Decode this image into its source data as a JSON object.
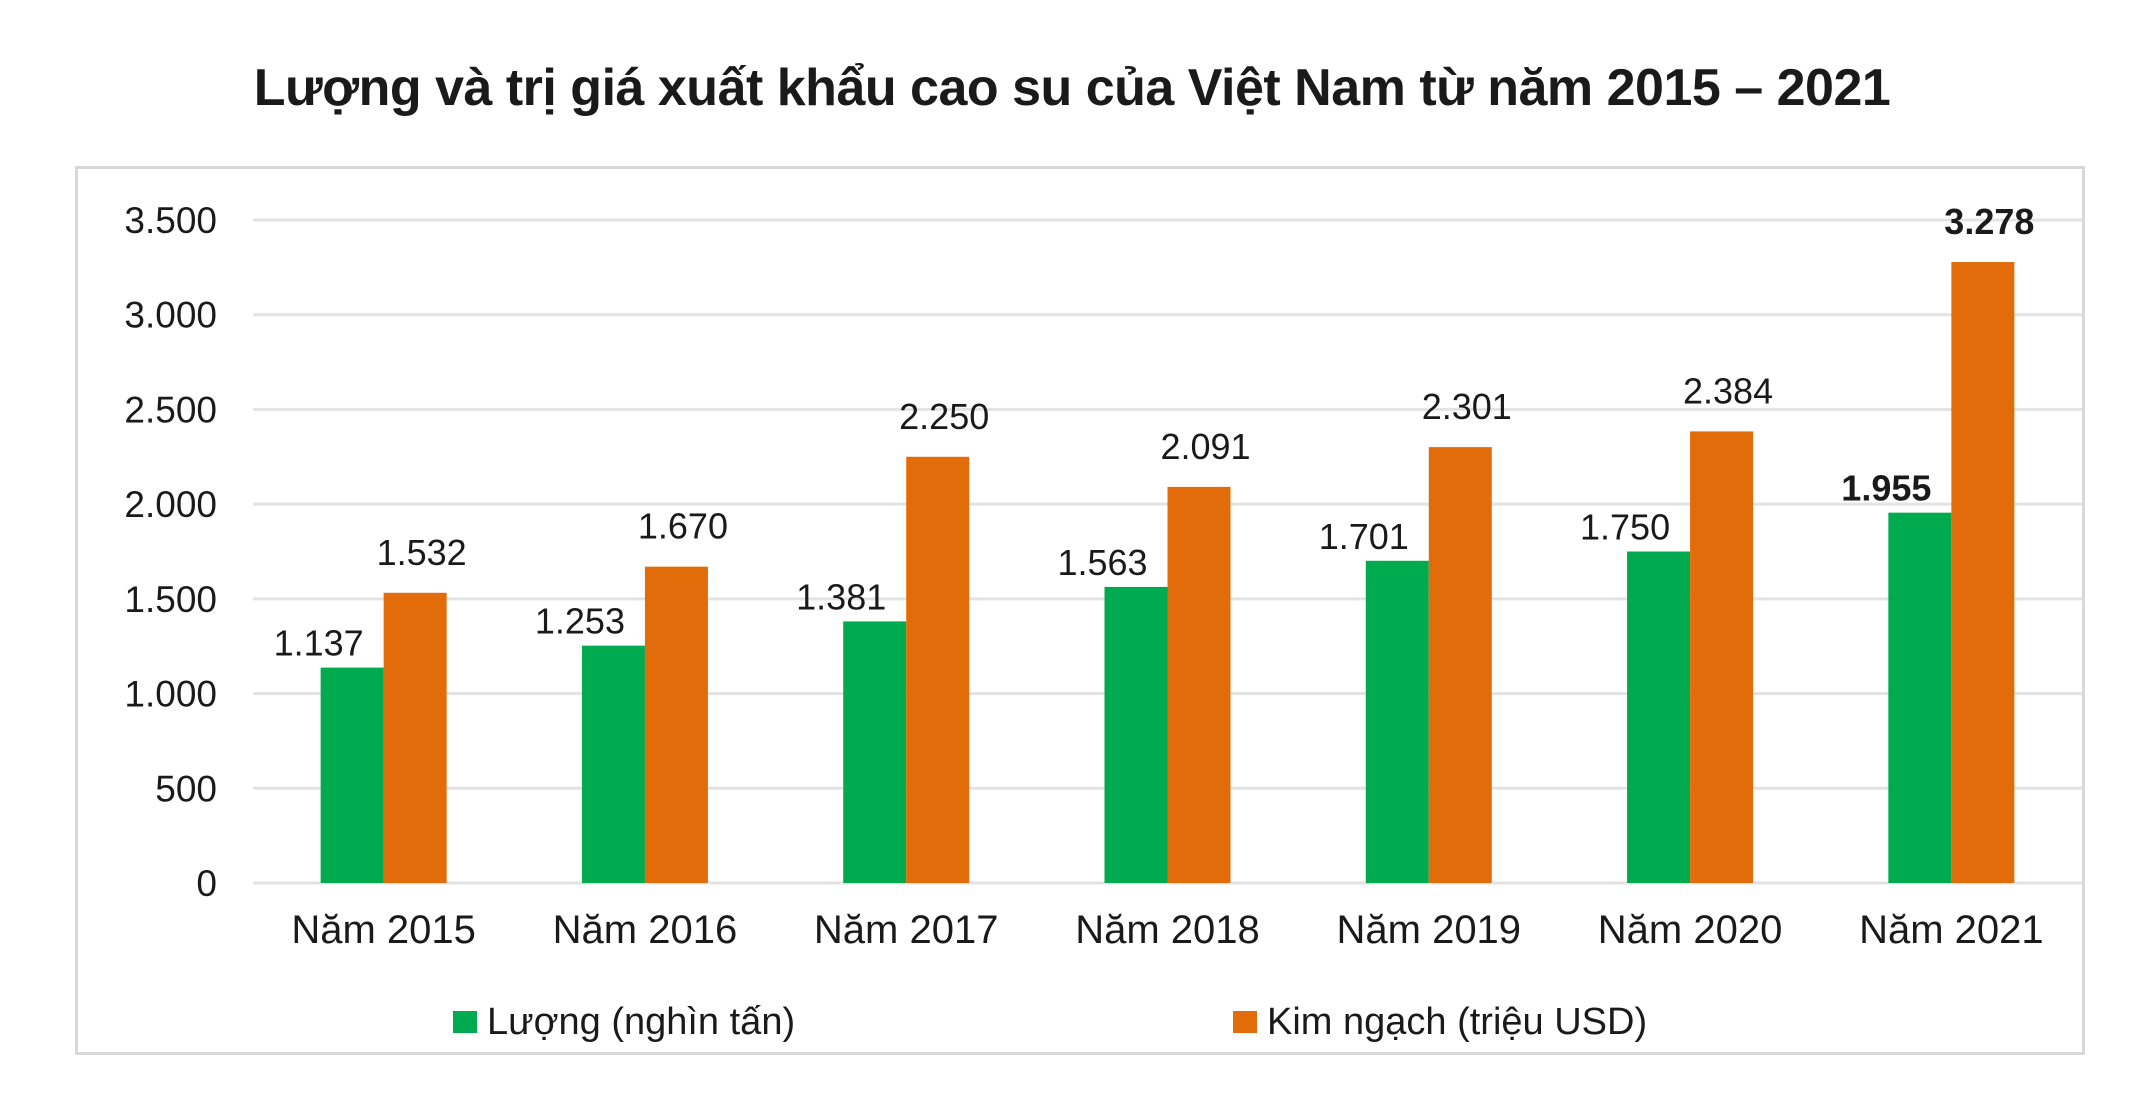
{
  "title": "Lượng và trị giá xuất khẩu cao su của Việt Nam từ năm 2015 – 2021",
  "colors": {
    "luong": "#00AA4E",
    "kim_ngach": "#E36C0A",
    "gridline": "#e3e3e3",
    "frame": "#d9d9d9",
    "text": "#1a1a1a"
  },
  "legend": {
    "items": [
      {
        "label": "Lượng (nghìn tấn)",
        "color": "#00AA4E"
      },
      {
        "label": "Kim ngạch (triệu USD)",
        "color": "#E36C0A"
      }
    ]
  },
  "chart_data": {
    "type": "bar",
    "title": "Lượng và trị giá xuất khẩu cao su của Việt Nam từ năm 2015 – 2021",
    "xlabel": "",
    "ylabel": "",
    "categories": [
      "Năm 2015",
      "Năm 2016",
      "Năm 2017",
      "Năm 2018",
      "Năm 2019",
      "Năm 2020",
      "Năm 2021"
    ],
    "series": [
      {
        "name": "Lượng (nghìn tấn)",
        "color": "#00AA4E",
        "values": [
          1137,
          1253,
          1381,
          1563,
          1701,
          1750,
          1955
        ],
        "labels": [
          "1.137",
          "1.253",
          "1.381",
          "1.563",
          "1.701",
          "1.750",
          "1.955"
        ]
      },
      {
        "name": "Kim ngạch (triệu USD)",
        "color": "#E36C0A",
        "values": [
          1532,
          1670,
          2250,
          2091,
          2301,
          2384,
          3278
        ],
        "labels": [
          "1.532",
          "1.670",
          "2.250",
          "2.091",
          "2.301",
          "2.384",
          "3.278"
        ]
      }
    ],
    "bold_label_categories": [
      "Năm 2021"
    ],
    "ylim": [
      0,
      3500
    ],
    "yticks": [
      0,
      500,
      1000,
      1500,
      2000,
      2500,
      3000,
      3500
    ],
    "ytick_labels": [
      "0",
      "500",
      "1.000",
      "1.500",
      "2.000",
      "2.500",
      "3.000",
      "3.500"
    ],
    "grid": true,
    "legend_position": "bottom"
  }
}
